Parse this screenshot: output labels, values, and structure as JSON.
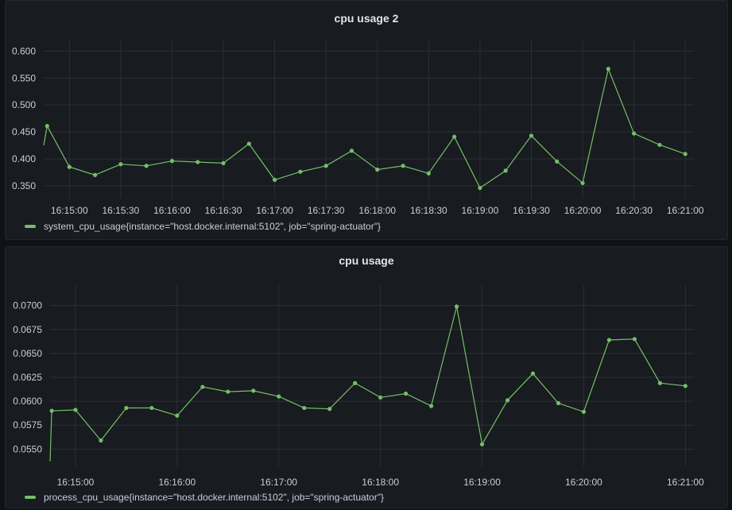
{
  "chart_data": [
    {
      "type": "line",
      "title": "cpu usage 2",
      "ylim": [
        0.335,
        0.605
      ],
      "yticks": [
        "0.350",
        "0.400",
        "0.450",
        "0.500",
        "0.550",
        "0.600"
      ],
      "ytick_values": [
        0.35,
        0.4,
        0.45,
        0.5,
        0.55,
        0.6
      ],
      "xlim": [
        0,
        380
      ],
      "xticks": [
        "16:15:00",
        "16:15:30",
        "16:16:00",
        "16:16:30",
        "16:17:00",
        "16:17:30",
        "16:18:00",
        "16:18:30",
        "16:19:00",
        "16:19:30",
        "16:20:00",
        "16:20:30",
        "16:21:00"
      ],
      "xtick_values": [
        15,
        45,
        75,
        105,
        135,
        165,
        195,
        225,
        255,
        285,
        315,
        345,
        375
      ],
      "series": [
        {
          "name": "system_cpu_usage{instance=\"host.docker.internal:5102\", job=\"spring-actuator\"}",
          "color": "#73bf69",
          "first_point_marker": false,
          "x": [
            0,
            2,
            15,
            30,
            45,
            60,
            75,
            90,
            105,
            120,
            135,
            150,
            165,
            180,
            195,
            210,
            225,
            240,
            255,
            270,
            285,
            300,
            315,
            330,
            345,
            360,
            375
          ],
          "y": [
            0.425,
            0.461,
            0.385,
            0.37,
            0.39,
            0.387,
            0.396,
            0.394,
            0.392,
            0.428,
            0.361,
            0.376,
            0.387,
            0.415,
            0.38,
            0.387,
            0.373,
            0.441,
            0.346,
            0.378,
            0.443,
            0.395,
            0.355,
            0.567,
            0.447,
            0.426,
            0.409
          ]
        }
      ]
    },
    {
      "type": "line",
      "title": "cpu usage",
      "ylim": [
        0.0537,
        0.0713
      ],
      "yticks": [
        "0.0550",
        "0.0575",
        "0.0600",
        "0.0625",
        "0.0650",
        "0.0675",
        "0.0700"
      ],
      "ytick_values": [
        0.055,
        0.0575,
        0.06,
        0.0625,
        0.065,
        0.0675,
        0.07
      ],
      "xlim": [
        0,
        380
      ],
      "xticks": [
        "16:15:00",
        "16:16:00",
        "16:17:00",
        "16:18:00",
        "16:19:00",
        "16:20:00",
        "16:21:00"
      ],
      "xtick_values": [
        15,
        75,
        135,
        195,
        255,
        315,
        375
      ],
      "series": [
        {
          "name": "process_cpu_usage{instance=\"host.docker.internal:5102\", job=\"spring-actuator\"}",
          "color": "#73bf69",
          "first_point_marker": false,
          "x": [
            0,
            1,
            15,
            30,
            45,
            60,
            75,
            90,
            105,
            120,
            135,
            150,
            165,
            180,
            195,
            210,
            225,
            240,
            255,
            270,
            285,
            300,
            315,
            330,
            345,
            360,
            375
          ],
          "y": [
            0.0537,
            0.059,
            0.0591,
            0.0559,
            0.0593,
            0.0593,
            0.0585,
            0.0615,
            0.061,
            0.0611,
            0.0605,
            0.0593,
            0.0592,
            0.0619,
            0.0604,
            0.0608,
            0.0595,
            0.0699,
            0.0555,
            0.0601,
            0.0629,
            0.0598,
            0.0589,
            0.0664,
            0.0665,
            0.0619,
            0.0616
          ]
        }
      ]
    }
  ]
}
